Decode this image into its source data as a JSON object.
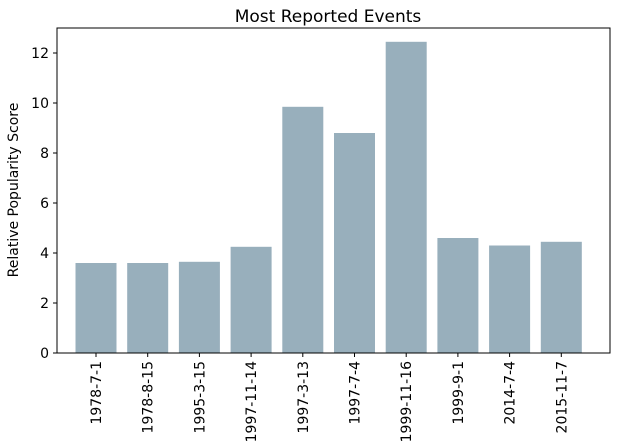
{
  "chart_data": {
    "type": "bar",
    "title": "Most Reported Events",
    "xlabel": "",
    "ylabel": "Relative Popularity Score",
    "categories": [
      "1978-7-1",
      "1978-8-15",
      "1995-3-15",
      "1997-11-14",
      "1997-3-13",
      "1997-7-4",
      "1999-11-16",
      "1999-9-1",
      "2014-7-4",
      "2015-11-7"
    ],
    "values": [
      3.6,
      3.6,
      3.65,
      4.25,
      9.85,
      8.8,
      12.45,
      4.6,
      4.3,
      4.45
    ],
    "ylim": [
      0,
      13
    ],
    "yticks": [
      0,
      2,
      4,
      6,
      8,
      10,
      12
    ],
    "bar_color": "#98afbc",
    "grid": false,
    "legend": "none"
  }
}
